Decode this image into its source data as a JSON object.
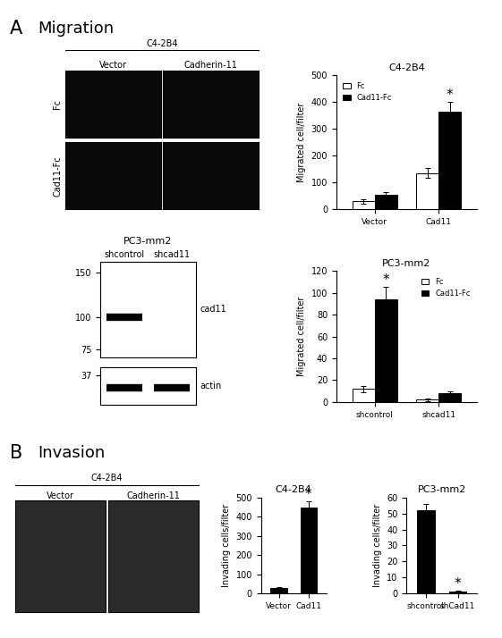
{
  "panels": [
    {
      "label": "A",
      "title": "Migration"
    },
    {
      "label": "B",
      "title": "Invasion"
    }
  ],
  "images": [
    {
      "title": "C4-2B4",
      "columns": [
        "Vector",
        "Cadherin-11"
      ],
      "rows": [
        "Fc",
        "Cad11-Fc"
      ]
    },
    {
      "title": "C4-2B4",
      "columns": [
        "Vector",
        "Cadherin-11"
      ]
    }
  ],
  "western_blot": {
    "title": "PC3-mm2",
    "lanes": [
      "shcontrol",
      "shcad11"
    ],
    "log": true,
    "blots": [
      {
        "label": "cad11",
        "ylim": [
          70,
          165
        ],
        "yticks": [
          150,
          100,
          75
        ],
        "band_kda": 100,
        "band_lanes": [
          true,
          false
        ]
      },
      {
        "label": "actin",
        "ylim": [
          28,
          40
        ],
        "yticks": [
          37
        ],
        "band_kda": 33,
        "band_lanes": [
          true,
          true
        ]
      }
    ]
  },
  "chart_data": [
    {
      "type": "bar",
      "title": "C4-2B4",
      "categories": [
        "Vector",
        "Cad11"
      ],
      "series": [
        {
          "name": "Fc",
          "color": "#ffffff",
          "values": [
            30,
            135
          ],
          "errors": [
            8,
            18
          ]
        },
        {
          "name": "Cad11-Fc",
          "color": "#000000",
          "values": [
            55,
            365
          ],
          "errors": [
            10,
            35
          ]
        }
      ],
      "ylabel": "Migrated cell/filter",
      "ylim": [
        0,
        500
      ],
      "yticks": [
        0,
        100,
        200,
        300,
        400,
        500
      ],
      "legend": "upper left",
      "annotations": [
        {
          "text": "*",
          "category": "Cad11",
          "series": "Cad11-Fc"
        }
      ]
    },
    {
      "type": "bar",
      "title": "PC3-mm2",
      "categories": [
        "shcontrol",
        "shcad11"
      ],
      "series": [
        {
          "name": "Fc",
          "color": "#ffffff",
          "values": [
            12,
            2
          ],
          "errors": [
            3,
            1
          ]
        },
        {
          "name": "Cad11-Fc",
          "color": "#000000",
          "values": [
            94,
            8
          ],
          "errors": [
            12,
            2
          ]
        }
      ],
      "ylabel": "Migrated cell/filter",
      "ylim": [
        0,
        120
      ],
      "yticks": [
        0,
        20,
        40,
        60,
        80,
        100,
        120
      ],
      "legend": "upper right",
      "annotations": [
        {
          "text": "*",
          "category": "shcontrol",
          "series": "Cad11-Fc"
        }
      ]
    },
    {
      "type": "bar",
      "title": "C4-2B4",
      "categories": [
        "Vector",
        "Cad11"
      ],
      "color": "#000000",
      "values": [
        30,
        450
      ],
      "errors": [
        5,
        30
      ],
      "ylabel": "Invading cells/filter",
      "ylim": [
        0,
        500
      ],
      "yticks": [
        0,
        100,
        200,
        300,
        400,
        500
      ],
      "annotations": [
        {
          "text": "*",
          "category": "Cad11"
        }
      ]
    },
    {
      "type": "bar",
      "title": "PC3-mm2",
      "categories": [
        "shcontrol",
        "shCad11"
      ],
      "color": "#000000",
      "values": [
        52,
        1
      ],
      "errors": [
        4,
        0.5
      ],
      "ylabel": "Invading cells/filter",
      "ylim": [
        0,
        60
      ],
      "yticks": [
        0,
        10,
        20,
        30,
        40,
        50,
        60
      ],
      "annotations": [
        {
          "text": "*",
          "category": "shCad11"
        }
      ]
    }
  ]
}
